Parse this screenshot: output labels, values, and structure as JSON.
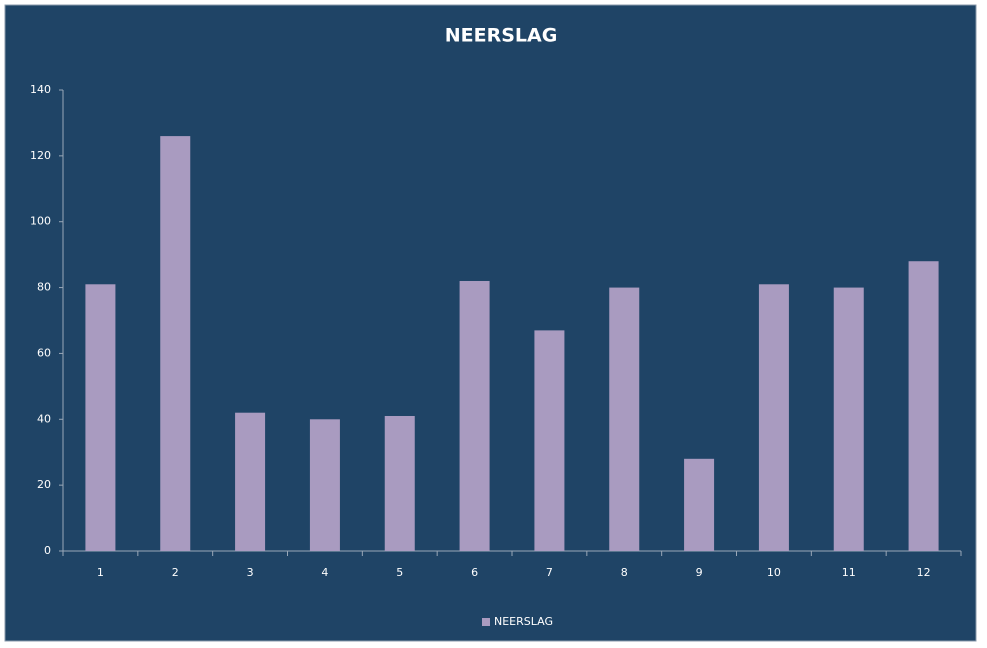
{
  "chart_data": {
    "type": "bar",
    "title": "NEERSLAG",
    "categories": [
      "1",
      "2",
      "3",
      "4",
      "5",
      "6",
      "7",
      "8",
      "9",
      "10",
      "11",
      "12"
    ],
    "series": [
      {
        "name": "NEERSLAG",
        "color": "#a99bc0",
        "values": [
          81,
          126,
          42,
          40,
          41,
          82,
          67,
          80,
          28,
          81,
          80,
          88
        ]
      }
    ],
    "ylim": [
      0,
      140
    ],
    "yticks": [
      0,
      20,
      40,
      60,
      80,
      100,
      120,
      140
    ],
    "grid": false,
    "legend": "bottom"
  }
}
